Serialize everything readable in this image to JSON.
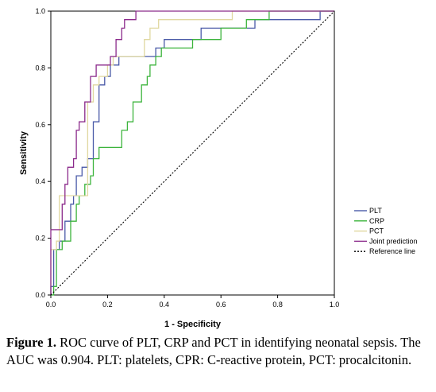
{
  "chart_data": {
    "type": "line",
    "xlabel": "1 - Specificity",
    "ylabel": "Sensitivity",
    "xlim": [
      0,
      1
    ],
    "ylim": [
      0,
      1
    ],
    "xticks": [
      "0.0",
      "0.2",
      "0.4",
      "0.6",
      "0.8",
      "1.0"
    ],
    "yticks": [
      "0.0",
      "0.2",
      "0.4",
      "0.6",
      "0.8",
      "1.0"
    ],
    "grid": false,
    "legend_position": "bottom-right",
    "series": [
      {
        "name": "PLT",
        "color": "#4a5aa8",
        "points": [
          [
            0,
            0
          ],
          [
            0,
            0.03
          ],
          [
            0.01,
            0.03
          ],
          [
            0.01,
            0.16
          ],
          [
            0.03,
            0.16
          ],
          [
            0.03,
            0.19
          ],
          [
            0.05,
            0.19
          ],
          [
            0.05,
            0.26
          ],
          [
            0.07,
            0.26
          ],
          [
            0.07,
            0.32
          ],
          [
            0.08,
            0.32
          ],
          [
            0.08,
            0.35
          ],
          [
            0.09,
            0.35
          ],
          [
            0.09,
            0.42
          ],
          [
            0.11,
            0.42
          ],
          [
            0.11,
            0.45
          ],
          [
            0.13,
            0.45
          ],
          [
            0.13,
            0.48
          ],
          [
            0.15,
            0.48
          ],
          [
            0.15,
            0.61
          ],
          [
            0.17,
            0.61
          ],
          [
            0.17,
            0.74
          ],
          [
            0.19,
            0.74
          ],
          [
            0.19,
            0.77
          ],
          [
            0.21,
            0.77
          ],
          [
            0.21,
            0.81
          ],
          [
            0.24,
            0.81
          ],
          [
            0.24,
            0.84
          ],
          [
            0.37,
            0.84
          ],
          [
            0.37,
            0.87
          ],
          [
            0.4,
            0.87
          ],
          [
            0.4,
            0.9
          ],
          [
            0.53,
            0.9
          ],
          [
            0.53,
            0.94
          ],
          [
            0.72,
            0.94
          ],
          [
            0.72,
            0.97
          ],
          [
            0.95,
            0.97
          ],
          [
            0.95,
            1.0
          ],
          [
            1,
            1
          ]
        ]
      },
      {
        "name": "CRP",
        "color": "#3cb43c",
        "points": [
          [
            0,
            0
          ],
          [
            0.01,
            0
          ],
          [
            0.01,
            0.03
          ],
          [
            0.02,
            0.03
          ],
          [
            0.02,
            0.16
          ],
          [
            0.04,
            0.16
          ],
          [
            0.04,
            0.19
          ],
          [
            0.07,
            0.19
          ],
          [
            0.07,
            0.26
          ],
          [
            0.09,
            0.26
          ],
          [
            0.09,
            0.32
          ],
          [
            0.1,
            0.32
          ],
          [
            0.1,
            0.35
          ],
          [
            0.12,
            0.35
          ],
          [
            0.12,
            0.39
          ],
          [
            0.14,
            0.39
          ],
          [
            0.14,
            0.42
          ],
          [
            0.15,
            0.42
          ],
          [
            0.15,
            0.48
          ],
          [
            0.17,
            0.48
          ],
          [
            0.17,
            0.52
          ],
          [
            0.25,
            0.52
          ],
          [
            0.25,
            0.58
          ],
          [
            0.27,
            0.58
          ],
          [
            0.27,
            0.61
          ],
          [
            0.29,
            0.61
          ],
          [
            0.29,
            0.68
          ],
          [
            0.32,
            0.68
          ],
          [
            0.32,
            0.74
          ],
          [
            0.34,
            0.74
          ],
          [
            0.34,
            0.77
          ],
          [
            0.35,
            0.77
          ],
          [
            0.35,
            0.81
          ],
          [
            0.37,
            0.81
          ],
          [
            0.37,
            0.84
          ],
          [
            0.39,
            0.84
          ],
          [
            0.39,
            0.87
          ],
          [
            0.5,
            0.87
          ],
          [
            0.5,
            0.9
          ],
          [
            0.6,
            0.9
          ],
          [
            0.6,
            0.94
          ],
          [
            0.69,
            0.94
          ],
          [
            0.69,
            0.97
          ],
          [
            0.77,
            0.97
          ],
          [
            0.77,
            1.0
          ],
          [
            1,
            1
          ]
        ]
      },
      {
        "name": "PCT",
        "color": "#e0d8a0",
        "points": [
          [
            0,
            0
          ],
          [
            0,
            0.16
          ],
          [
            0.02,
            0.16
          ],
          [
            0.02,
            0.19
          ],
          [
            0.03,
            0.19
          ],
          [
            0.03,
            0.35
          ],
          [
            0.13,
            0.35
          ],
          [
            0.13,
            0.68
          ],
          [
            0.15,
            0.68
          ],
          [
            0.15,
            0.74
          ],
          [
            0.17,
            0.74
          ],
          [
            0.17,
            0.77
          ],
          [
            0.2,
            0.77
          ],
          [
            0.2,
            0.81
          ],
          [
            0.22,
            0.81
          ],
          [
            0.22,
            0.84
          ],
          [
            0.33,
            0.84
          ],
          [
            0.33,
            0.9
          ],
          [
            0.35,
            0.9
          ],
          [
            0.35,
            0.94
          ],
          [
            0.38,
            0.94
          ],
          [
            0.38,
            0.97
          ],
          [
            0.64,
            0.97
          ],
          [
            0.64,
            1.0
          ],
          [
            1,
            1
          ]
        ]
      },
      {
        "name": "Joint prediction",
        "color": "#8b2a8b",
        "points": [
          [
            0,
            0
          ],
          [
            0,
            0.23
          ],
          [
            0.04,
            0.23
          ],
          [
            0.04,
            0.32
          ],
          [
            0.05,
            0.32
          ],
          [
            0.05,
            0.39
          ],
          [
            0.06,
            0.39
          ],
          [
            0.06,
            0.45
          ],
          [
            0.08,
            0.45
          ],
          [
            0.08,
            0.48
          ],
          [
            0.09,
            0.48
          ],
          [
            0.09,
            0.58
          ],
          [
            0.1,
            0.58
          ],
          [
            0.1,
            0.61
          ],
          [
            0.12,
            0.61
          ],
          [
            0.12,
            0.68
          ],
          [
            0.14,
            0.68
          ],
          [
            0.14,
            0.77
          ],
          [
            0.16,
            0.77
          ],
          [
            0.16,
            0.81
          ],
          [
            0.21,
            0.81
          ],
          [
            0.21,
            0.84
          ],
          [
            0.23,
            0.84
          ],
          [
            0.23,
            0.9
          ],
          [
            0.25,
            0.9
          ],
          [
            0.25,
            0.94
          ],
          [
            0.26,
            0.94
          ],
          [
            0.26,
            0.97
          ],
          [
            0.3,
            0.97
          ],
          [
            0.3,
            1.0
          ],
          [
            1,
            1
          ]
        ]
      },
      {
        "name": "Reference line",
        "color": "#000000",
        "dashed": true,
        "points": [
          [
            0,
            0
          ],
          [
            1,
            1
          ]
        ]
      }
    ]
  },
  "caption": {
    "label": "Figure 1.",
    "text": " ROC curve of PLT, CRP and PCT in identifying neonatal sepsis. The AUC was 0.904. PLT: platelets, CPR: C-reactive protein, PCT: procalcitonin."
  }
}
